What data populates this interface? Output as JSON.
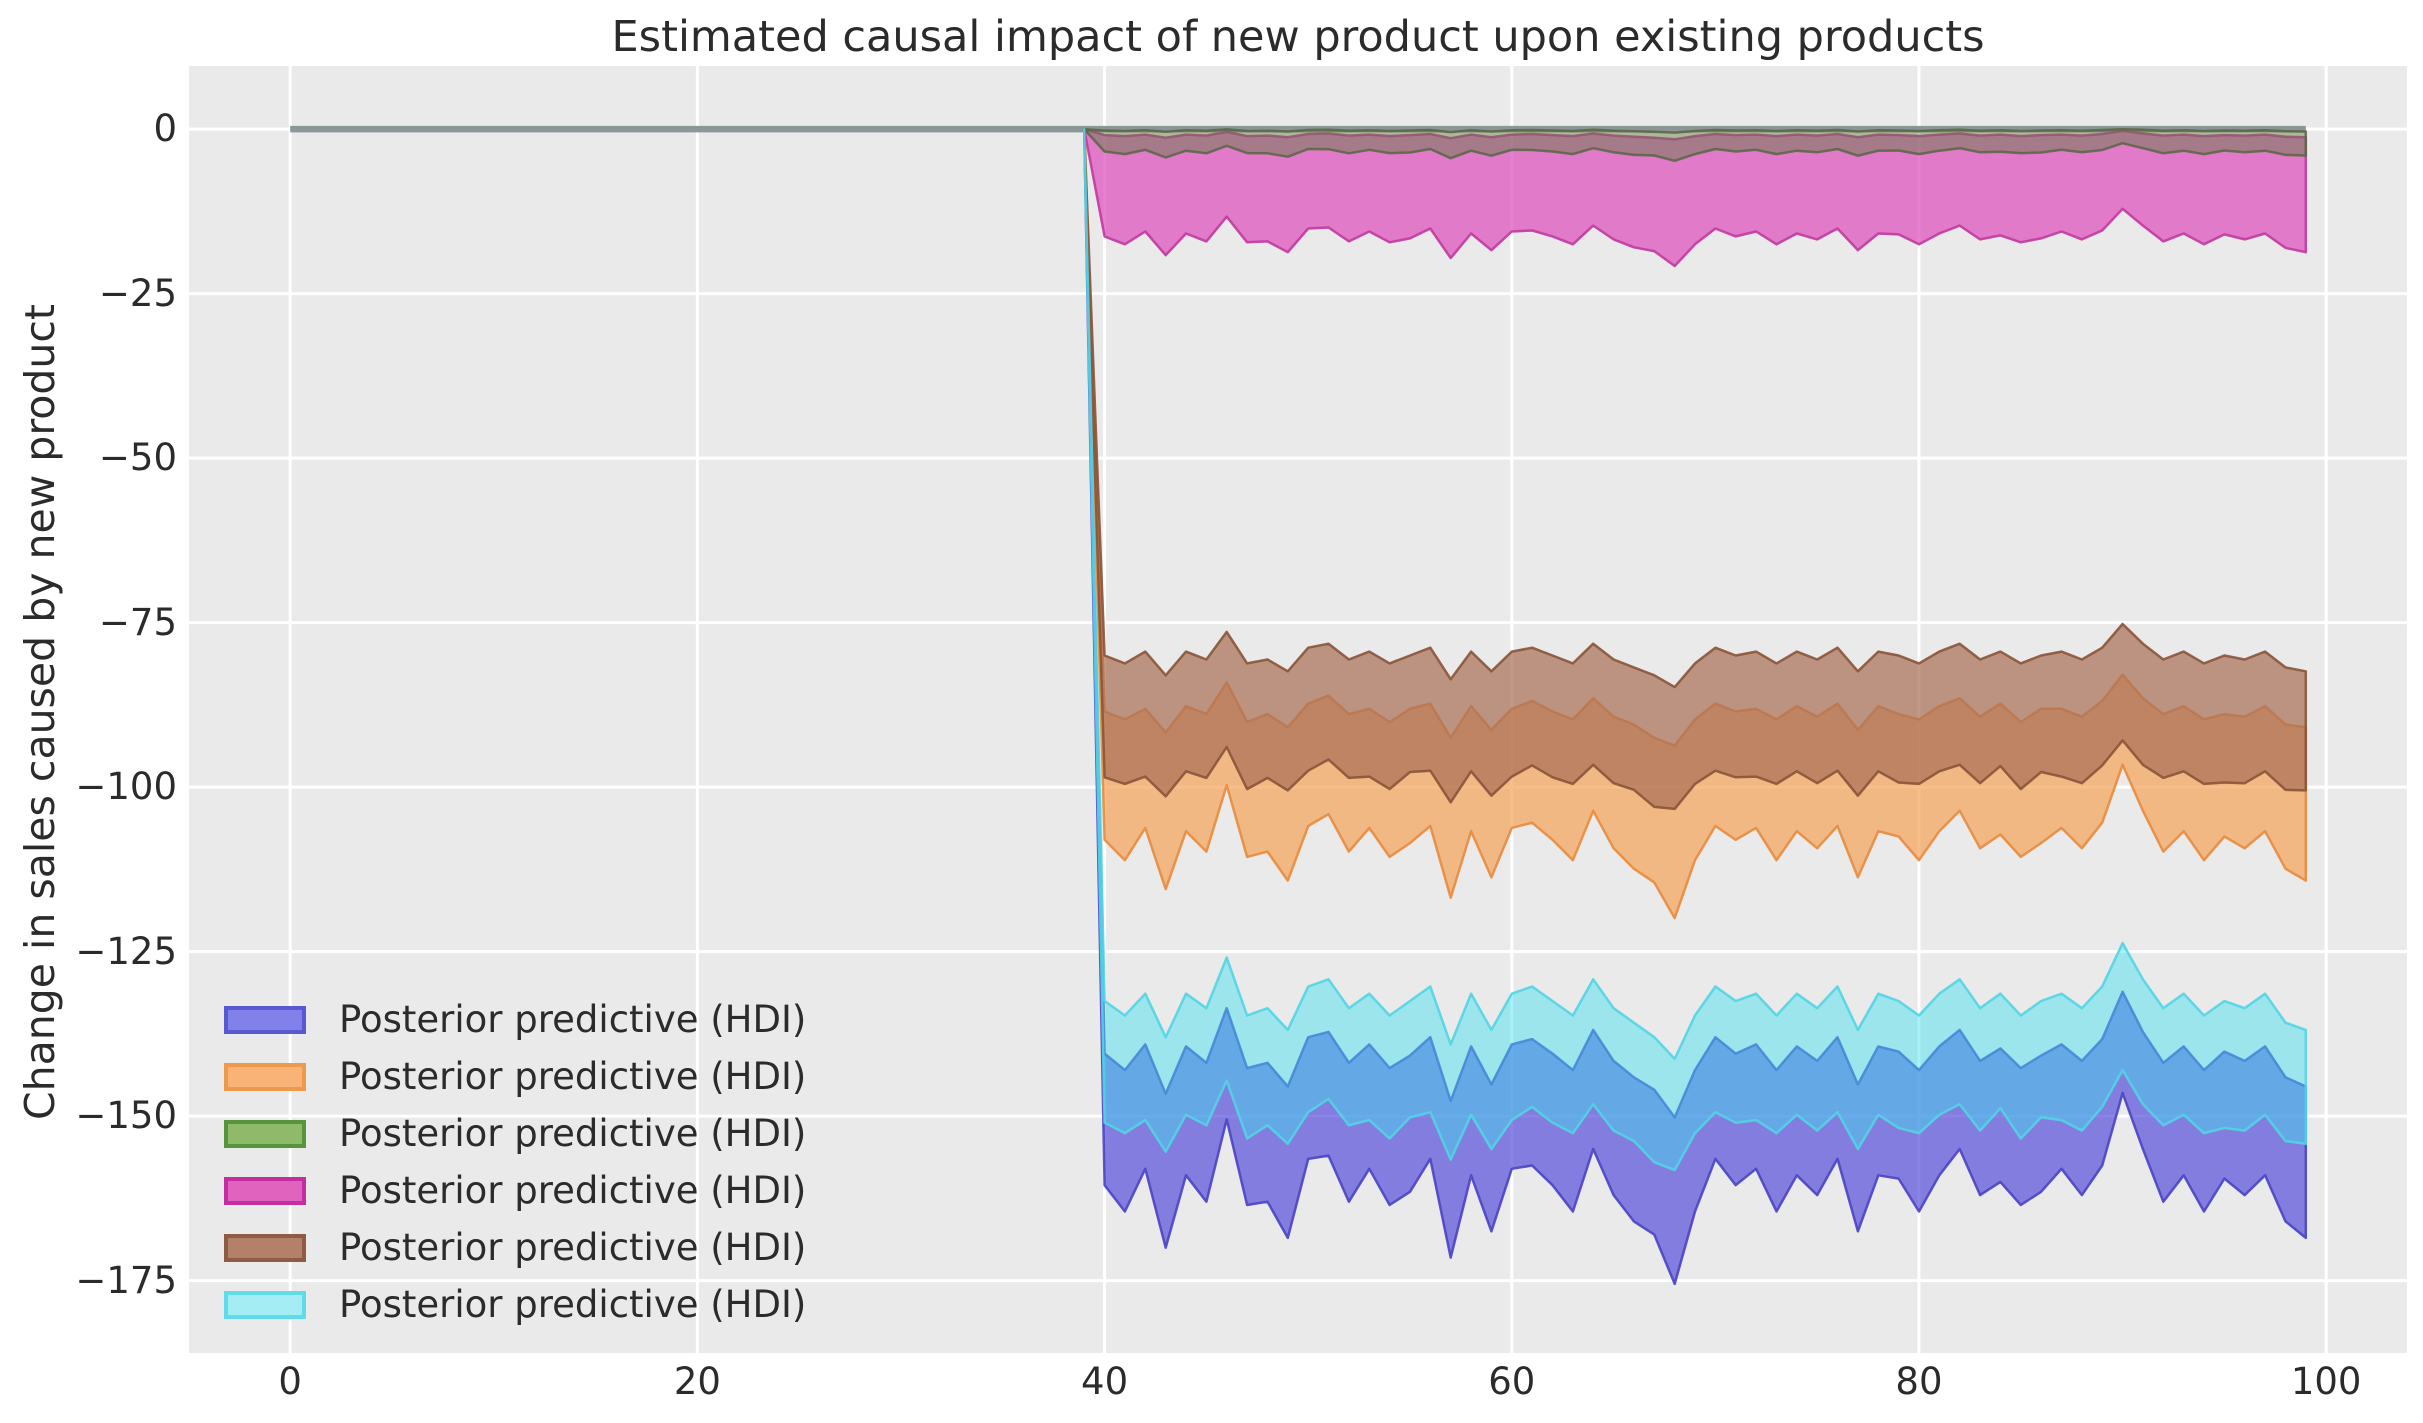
{
  "title": "Estimated causal impact of new product upon existing products",
  "y_axis": {
    "label": "Change in sales caused by new product",
    "tick_labels": [
      "0",
      "−25",
      "−50",
      "−75",
      "−100",
      "−125",
      "−150",
      "−175"
    ],
    "tick_values": [
      0,
      -25,
      -50,
      -75,
      -100,
      -125,
      -150,
      -175
    ]
  },
  "x_axis": {
    "label": "",
    "tick_labels": [
      "0",
      "20",
      "40",
      "60",
      "80",
      "100"
    ],
    "tick_values": [
      0,
      20,
      40,
      60,
      80,
      100
    ]
  },
  "colors": {
    "figure_bg": "#ffffff",
    "axes_bg": "#eaeaea",
    "grid": "#ffffff",
    "zero_line": "#8a9697",
    "text": "#2b2b2b"
  },
  "legend": {
    "items": [
      {
        "label": "Posterior predictive (HDI)",
        "swatch_fill": "#8181e9",
        "swatch_edge": "#5959d1"
      },
      {
        "label": "Posterior predictive (HDI)",
        "swatch_fill": "#f9b377",
        "swatch_edge": "#ee9a4c"
      },
      {
        "label": "Posterior predictive (HDI)",
        "swatch_fill": "#8fba69",
        "swatch_edge": "#57953c"
      },
      {
        "label": "Posterior predictive (HDI)",
        "swatch_fill": "#e063be",
        "swatch_edge": "#c42f9f"
      },
      {
        "label": "Posterior predictive (HDI)",
        "swatch_fill": "#b38069",
        "swatch_edge": "#8f5b42"
      },
      {
        "label": "Posterior predictive (HDI)",
        "swatch_fill": "#a5edf4",
        "swatch_edge": "#5fdceb"
      }
    ]
  },
  "chart_data": {
    "type": "area",
    "title": "Estimated causal impact of new product upon existing products",
    "xlabel": "",
    "ylabel": "Change in sales caused by new product",
    "xlim": [
      -4.97,
      103.97
    ],
    "ylim": [
      -186.0,
      9.6
    ],
    "grid": true,
    "legend_position": "lower left",
    "zero_line": {
      "t_start": 0,
      "t_end": 99,
      "value": 0
    },
    "intervention_time": 40,
    "t_start": 40,
    "t_end": 99,
    "anchor_t": 39,
    "anchor_value": 0,
    "bands": [
      {
        "name": "blue",
        "label": "Posterior predictive (HDI)",
        "fill": "rgba(91,83,219,0.72)",
        "edge": "rgba(74,66,196,0.9)",
        "upper": [
          -140.5,
          -143.0,
          -139.1,
          -146.6,
          -139.4,
          -141.9,
          -133.6,
          -142.7,
          -141.9,
          -145.5,
          -138.0,
          -137.2,
          -141.9,
          -139.1,
          -142.7,
          -140.8,
          -138.0,
          -147.7,
          -139.4,
          -145.2,
          -139.1,
          -138.3,
          -140.5,
          -143.0,
          -136.9,
          -141.6,
          -144.1,
          -146.0,
          -150.2,
          -143.0,
          -138.0,
          -140.5,
          -139.1,
          -143.0,
          -139.4,
          -141.6,
          -138.0,
          -145.2,
          -139.4,
          -140.2,
          -143.0,
          -139.4,
          -136.9,
          -141.6,
          -139.7,
          -142.7,
          -140.8,
          -139.1,
          -141.6,
          -138.3,
          -131.1,
          -137.2,
          -141.9,
          -139.4,
          -143.0,
          -140.2,
          -141.6,
          -139.4,
          -144.1,
          -145.5
        ],
        "lower": [
          -160.5,
          -164.5,
          -158.0,
          -170.0,
          -159.0,
          -163.0,
          -150.5,
          -163.5,
          -163.0,
          -168.5,
          -156.5,
          -156.0,
          -163.0,
          -158.0,
          -163.5,
          -161.5,
          -156.5,
          -171.5,
          -159.0,
          -167.5,
          -158.0,
          -157.5,
          -160.5,
          -164.5,
          -155.0,
          -162.0,
          -166.0,
          -168.0,
          -175.5,
          -164.5,
          -156.5,
          -160.5,
          -158.0,
          -164.5,
          -159.0,
          -162.0,
          -156.5,
          -167.5,
          -159.0,
          -159.5,
          -164.5,
          -159.0,
          -155.0,
          -162.0,
          -160.0,
          -163.5,
          -161.5,
          -158.0,
          -162.0,
          -157.5,
          -146.5,
          -155.0,
          -163.0,
          -159.0,
          -164.5,
          -159.5,
          -162.0,
          -159.0,
          -166.0,
          -168.5
        ]
      },
      {
        "name": "orange",
        "label": "Posterior predictive (HDI)",
        "fill": "rgba(245,165,92,0.72)",
        "edge": "rgba(232,139,62,0.9)",
        "upper": [
          -88.5,
          -89.7,
          -88.1,
          -91.7,
          -87.7,
          -88.9,
          -84.1,
          -90.1,
          -88.9,
          -90.9,
          -87.3,
          -86.1,
          -88.9,
          -88.1,
          -90.1,
          -88.1,
          -87.3,
          -92.5,
          -87.7,
          -91.3,
          -88.1,
          -86.9,
          -88.5,
          -89.7,
          -86.5,
          -89.3,
          -90.5,
          -92.5,
          -93.7,
          -89.7,
          -87.3,
          -88.5,
          -88.1,
          -89.7,
          -87.7,
          -89.3,
          -87.3,
          -91.3,
          -87.7,
          -88.9,
          -89.7,
          -87.7,
          -86.5,
          -89.3,
          -87.3,
          -90.1,
          -88.1,
          -88.1,
          -89.3,
          -86.9,
          -82.9,
          -86.5,
          -88.9,
          -87.7,
          -89.7,
          -88.9,
          -89.3,
          -87.7,
          -90.5,
          -90.9
        ],
        "lower": [
          -108.0,
          -111.1,
          -106.2,
          -115.5,
          -106.7,
          -109.8,
          -99.7,
          -110.6,
          -109.8,
          -114.2,
          -105.9,
          -104.1,
          -109.8,
          -106.2,
          -110.6,
          -108.5,
          -105.9,
          -116.8,
          -106.7,
          -113.7,
          -106.2,
          -105.4,
          -108.0,
          -111.1,
          -103.6,
          -109.3,
          -112.4,
          -114.5,
          -119.9,
          -111.1,
          -105.9,
          -108.0,
          -106.2,
          -111.1,
          -106.7,
          -109.3,
          -105.9,
          -113.7,
          -106.7,
          -107.5,
          -111.1,
          -106.7,
          -103.6,
          -109.3,
          -107.2,
          -110.6,
          -108.5,
          -106.2,
          -109.3,
          -105.4,
          -96.6,
          -103.6,
          -109.8,
          -106.7,
          -111.1,
          -107.5,
          -109.3,
          -106.7,
          -112.4,
          -114.2
        ]
      },
      {
        "name": "pink",
        "label": "Posterior predictive (HDI)",
        "fill": "rgba(221,79,188,0.72)",
        "edge": "rgba(194,56,159,0.9)",
        "upper": [
          -0.9,
          -1.06,
          -0.82,
          -1.3,
          -0.82,
          -0.98,
          -0.42,
          -1.06,
          -0.98,
          -1.22,
          -0.74,
          -0.66,
          -0.98,
          -0.82,
          -1.06,
          -0.9,
          -0.74,
          -1.38,
          -0.82,
          -1.22,
          -0.82,
          -0.74,
          -0.9,
          -1.06,
          -0.66,
          -0.98,
          -1.14,
          -1.3,
          -1.54,
          -1.06,
          -0.74,
          -0.9,
          -0.82,
          -1.06,
          -0.82,
          -0.98,
          -0.74,
          -1.22,
          -0.82,
          -0.9,
          -1.06,
          -0.82,
          -0.66,
          -0.98,
          -0.82,
          -1.06,
          -0.9,
          -0.82,
          -0.98,
          -0.74,
          -0.26,
          -0.66,
          -0.98,
          -0.82,
          -1.06,
          -0.9,
          -0.98,
          -0.82,
          -1.14,
          -1.22
        ],
        "lower": [
          -16.3,
          -17.5,
          -15.55,
          -19.15,
          -15.85,
          -17.05,
          -13.3,
          -17.2,
          -17.05,
          -18.7,
          -15.1,
          -14.95,
          -17.05,
          -15.55,
          -17.2,
          -16.6,
          -15.1,
          -19.6,
          -15.85,
          -18.4,
          -15.55,
          -15.4,
          -16.3,
          -17.5,
          -14.65,
          -16.75,
          -17.95,
          -18.55,
          -20.8,
          -17.5,
          -15.1,
          -16.3,
          -15.55,
          -17.5,
          -15.85,
          -16.75,
          -15.1,
          -18.4,
          -15.85,
          -16.0,
          -17.5,
          -15.85,
          -14.65,
          -16.75,
          -16.15,
          -17.2,
          -16.6,
          -15.55,
          -16.75,
          -15.4,
          -12.1,
          -14.65,
          -17.05,
          -15.85,
          -17.5,
          -16.0,
          -16.75,
          -15.85,
          -18.05,
          -18.7
        ]
      },
      {
        "name": "green",
        "label": "Posterior predictive (HDI)",
        "fill": "rgba(95,125,60,0.45)",
        "edge": "rgba(88,102,68,0.85)",
        "upper": [
          -0.2,
          -0.28,
          -0.16,
          -0.4,
          -0.16,
          -0.24,
          -0.04,
          -0.28,
          -0.24,
          -0.36,
          -0.12,
          -0.08,
          -0.24,
          -0.16,
          -0.28,
          -0.2,
          -0.12,
          -0.44,
          -0.16,
          -0.36,
          -0.16,
          -0.12,
          -0.2,
          -0.28,
          -0.08,
          -0.24,
          -0.32,
          -0.4,
          -0.52,
          -0.28,
          -0.12,
          -0.2,
          -0.16,
          -0.28,
          -0.16,
          -0.24,
          -0.12,
          -0.36,
          -0.16,
          -0.2,
          -0.28,
          -0.16,
          -0.08,
          -0.24,
          -0.16,
          -0.28,
          -0.2,
          -0.16,
          -0.24,
          -0.12,
          -0.02,
          -0.08,
          -0.24,
          -0.16,
          -0.28,
          -0.2,
          -0.24,
          -0.16,
          -0.32,
          -0.36
        ],
        "lower": [
          -3.4,
          -3.79,
          -3.13,
          -4.3,
          -3.28,
          -3.67,
          -2.53,
          -3.64,
          -3.67,
          -4.18,
          -3.01,
          -3.04,
          -3.67,
          -3.13,
          -3.64,
          -3.55,
          -3.01,
          -4.42,
          -3.28,
          -4.03,
          -3.13,
          -3.16,
          -3.4,
          -3.79,
          -2.89,
          -3.52,
          -3.91,
          -4.0,
          -4.81,
          -3.79,
          -3.01,
          -3.4,
          -3.13,
          -3.79,
          -3.28,
          -3.52,
          -3.01,
          -4.03,
          -3.28,
          -3.25,
          -3.79,
          -3.28,
          -2.89,
          -3.52,
          -3.43,
          -3.64,
          -3.55,
          -3.13,
          -3.52,
          -3.16,
          -2.14,
          -2.89,
          -3.67,
          -3.28,
          -3.79,
          -3.25,
          -3.52,
          -3.28,
          -3.91,
          -4.0
        ]
      },
      {
        "name": "brown",
        "label": "Posterior predictive (HDI)",
        "fill": "rgba(170,112,88,0.72)",
        "edge": "rgba(138,84,56,0.9)",
        "upper": [
          -80.0,
          -81.2,
          -79.4,
          -83.0,
          -79.4,
          -80.6,
          -76.4,
          -81.2,
          -80.6,
          -82.4,
          -78.8,
          -78.2,
          -80.6,
          -79.4,
          -81.2,
          -80.0,
          -78.8,
          -83.6,
          -79.4,
          -82.4,
          -79.4,
          -78.8,
          -80.0,
          -81.2,
          -78.2,
          -80.6,
          -81.8,
          -83.0,
          -84.8,
          -81.2,
          -78.8,
          -80.0,
          -79.4,
          -81.2,
          -79.4,
          -80.6,
          -78.8,
          -82.4,
          -79.4,
          -80.0,
          -81.2,
          -79.4,
          -78.2,
          -80.6,
          -79.4,
          -81.2,
          -80.0,
          -79.4,
          -80.6,
          -78.8,
          -75.2,
          -78.2,
          -80.6,
          -79.4,
          -81.2,
          -80.0,
          -80.6,
          -79.4,
          -81.8,
          -82.4
        ],
        "lower": [
          -98.5,
          -99.5,
          -98.4,
          -101.4,
          -97.6,
          -98.6,
          -93.9,
          -100.3,
          -98.6,
          -100.5,
          -97.5,
          -95.8,
          -98.6,
          -98.4,
          -100.3,
          -97.7,
          -97.5,
          -102.3,
          -97.6,
          -101.3,
          -98.4,
          -96.7,
          -98.5,
          -99.5,
          -96.6,
          -99.4,
          -100.4,
          -103.0,
          -103.3,
          -99.5,
          -97.5,
          -98.5,
          -98.4,
          -99.5,
          -97.6,
          -99.4,
          -97.5,
          -101.3,
          -97.6,
          -99.3,
          -99.5,
          -97.6,
          -96.6,
          -99.4,
          -96.8,
          -100.3,
          -97.7,
          -98.4,
          -99.4,
          -96.7,
          -92.9,
          -96.6,
          -98.6,
          -97.6,
          -99.5,
          -99.3,
          -99.4,
          -97.6,
          -100.4,
          -100.5
        ]
      },
      {
        "name": "cyan",
        "label": "Posterior predictive (HDI)",
        "fill": "rgba(63,224,239,0.45)",
        "edge": "rgba(82,212,228,0.9)",
        "upper": [
          -132.5,
          -134.7,
          -131.4,
          -138.0,
          -131.4,
          -133.6,
          -125.9,
          -134.7,
          -133.6,
          -136.9,
          -130.3,
          -129.2,
          -133.6,
          -131.4,
          -134.7,
          -132.5,
          -130.3,
          -139.1,
          -131.4,
          -136.9,
          -131.4,
          -130.3,
          -132.5,
          -134.7,
          -129.2,
          -133.6,
          -135.8,
          -138.0,
          -141.3,
          -134.7,
          -130.3,
          -132.5,
          -131.4,
          -134.7,
          -131.4,
          -133.6,
          -130.3,
          -136.9,
          -131.4,
          -132.5,
          -134.7,
          -131.4,
          -129.2,
          -133.6,
          -131.4,
          -134.7,
          -132.5,
          -131.4,
          -133.6,
          -130.3,
          -123.7,
          -129.2,
          -133.6,
          -131.4,
          -134.7,
          -132.5,
          -133.6,
          -131.4,
          -135.8,
          -136.9
        ],
        "lower": [
          -151.0,
          -152.6,
          -150.6,
          -155.4,
          -149.8,
          -151.4,
          -144.6,
          -153.4,
          -151.4,
          -154.2,
          -149.4,
          -147.4,
          -151.4,
          -150.6,
          -153.4,
          -150.2,
          -149.4,
          -156.6,
          -149.8,
          -155.0,
          -150.6,
          -148.6,
          -151.0,
          -152.6,
          -148.2,
          -152.2,
          -153.8,
          -157.0,
          -158.2,
          -152.6,
          -149.4,
          -151.0,
          -150.6,
          -152.6,
          -149.8,
          -152.2,
          -149.4,
          -155.0,
          -149.8,
          -151.8,
          -152.6,
          -149.8,
          -148.2,
          -152.2,
          -148.8,
          -153.4,
          -150.2,
          -150.6,
          -152.2,
          -148.6,
          -143.0,
          -148.2,
          -151.4,
          -149.8,
          -152.6,
          -151.8,
          -152.2,
          -149.8,
          -153.8,
          -154.2
        ]
      }
    ]
  }
}
